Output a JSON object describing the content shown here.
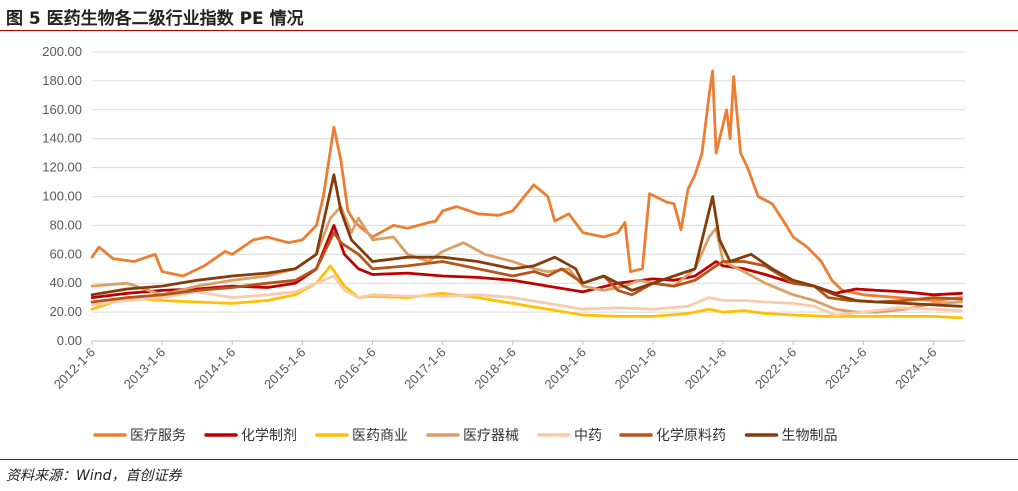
{
  "header": {
    "title": "图 5 医药生物各二级行业指数 PE 情况"
  },
  "footer": {
    "source": "资料来源：Wind，首创证券"
  },
  "chart_data": {
    "type": "line",
    "ylim": [
      0,
      200
    ],
    "yticks": [
      "0.00",
      "20.00",
      "40.00",
      "60.00",
      "80.00",
      "100.00",
      "120.00",
      "140.00",
      "160.00",
      "180.00",
      "200.00"
    ],
    "xticks": [
      "2012-1-6",
      "2013-1-6",
      "2014-1-6",
      "2015-1-6",
      "2016-1-6",
      "2017-1-6",
      "2018-1-6",
      "2019-1-6",
      "2020-1-6",
      "2021-1-6",
      "2022-1-6",
      "2023-1-6",
      "2024-1-6"
    ],
    "grid": true,
    "legend_position": "bottom",
    "series": [
      {
        "name": "医疗服务",
        "color": "#ED7D31",
        "values": [
          [
            2012.0,
            58
          ],
          [
            2012.1,
            65
          ],
          [
            2012.3,
            57
          ],
          [
            2012.6,
            55
          ],
          [
            2012.9,
            60
          ],
          [
            2013.0,
            48
          ],
          [
            2013.3,
            45
          ],
          [
            2013.6,
            52
          ],
          [
            2013.9,
            62
          ],
          [
            2014.0,
            60
          ],
          [
            2014.3,
            70
          ],
          [
            2014.5,
            72
          ],
          [
            2014.8,
            68
          ],
          [
            2015.0,
            70
          ],
          [
            2015.2,
            80
          ],
          [
            2015.3,
            100
          ],
          [
            2015.45,
            148
          ],
          [
            2015.55,
            125
          ],
          [
            2015.65,
            90
          ],
          [
            2015.75,
            82
          ],
          [
            2016.0,
            72
          ],
          [
            2016.3,
            80
          ],
          [
            2016.5,
            78
          ],
          [
            2016.8,
            82
          ],
          [
            2016.9,
            83
          ],
          [
            2017.0,
            90
          ],
          [
            2017.2,
            93
          ],
          [
            2017.5,
            88
          ],
          [
            2017.8,
            87
          ],
          [
            2018.0,
            90
          ],
          [
            2018.3,
            108
          ],
          [
            2018.5,
            100
          ],
          [
            2018.6,
            83
          ],
          [
            2018.8,
            88
          ],
          [
            2019.0,
            75
          ],
          [
            2019.3,
            72
          ],
          [
            2019.5,
            75
          ],
          [
            2019.6,
            82
          ],
          [
            2019.68,
            48
          ],
          [
            2019.85,
            50
          ],
          [
            2019.95,
            102
          ],
          [
            2020.2,
            96
          ],
          [
            2020.3,
            95
          ],
          [
            2020.4,
            77
          ],
          [
            2020.5,
            105
          ],
          [
            2020.6,
            115
          ],
          [
            2020.7,
            130
          ],
          [
            2020.8,
            170
          ],
          [
            2020.85,
            187
          ],
          [
            2020.9,
            130
          ],
          [
            2021.0,
            150
          ],
          [
            2021.05,
            160
          ],
          [
            2021.1,
            140
          ],
          [
            2021.15,
            183
          ],
          [
            2021.25,
            130
          ],
          [
            2021.35,
            120
          ],
          [
            2021.5,
            100
          ],
          [
            2021.7,
            95
          ],
          [
            2021.9,
            80
          ],
          [
            2022.0,
            72
          ],
          [
            2022.2,
            65
          ],
          [
            2022.4,
            55
          ],
          [
            2022.55,
            42
          ],
          [
            2022.7,
            35
          ],
          [
            2023.0,
            32
          ],
          [
            2023.5,
            30
          ],
          [
            2024.0,
            28
          ],
          [
            2024.4,
            30
          ]
        ]
      },
      {
        "name": "化学制剂",
        "color": "#C00000",
        "values": [
          [
            2012.0,
            30
          ],
          [
            2012.5,
            33
          ],
          [
            2013.0,
            35
          ],
          [
            2013.5,
            36
          ],
          [
            2014.0,
            38
          ],
          [
            2014.5,
            37
          ],
          [
            2014.9,
            40
          ],
          [
            2015.2,
            50
          ],
          [
            2015.45,
            80
          ],
          [
            2015.6,
            60
          ],
          [
            2015.8,
            50
          ],
          [
            2016.0,
            46
          ],
          [
            2016.5,
            47
          ],
          [
            2017.0,
            45
          ],
          [
            2017.5,
            44
          ],
          [
            2018.0,
            42
          ],
          [
            2018.5,
            38
          ],
          [
            2019.0,
            34
          ],
          [
            2019.5,
            40
          ],
          [
            2020.0,
            43
          ],
          [
            2020.3,
            42
          ],
          [
            2020.6,
            45
          ],
          [
            2020.9,
            55
          ],
          [
            2021.0,
            52
          ],
          [
            2021.3,
            50
          ],
          [
            2021.6,
            46
          ],
          [
            2022.0,
            40
          ],
          [
            2022.3,
            38
          ],
          [
            2022.6,
            33
          ],
          [
            2022.9,
            36
          ],
          [
            2023.2,
            35
          ],
          [
            2023.6,
            34
          ],
          [
            2024.0,
            32
          ],
          [
            2024.4,
            33
          ]
        ]
      },
      {
        "name": "医药商业",
        "color": "#FFC000",
        "values": [
          [
            2012.0,
            22
          ],
          [
            2012.5,
            30
          ],
          [
            2013.0,
            28
          ],
          [
            2013.5,
            27
          ],
          [
            2014.0,
            26
          ],
          [
            2014.5,
            28
          ],
          [
            2014.9,
            32
          ],
          [
            2015.2,
            40
          ],
          [
            2015.4,
            52
          ],
          [
            2015.6,
            38
          ],
          [
            2015.8,
            30
          ],
          [
            2016.0,
            31
          ],
          [
            2016.5,
            30
          ],
          [
            2017.0,
            33
          ],
          [
            2017.5,
            30
          ],
          [
            2018.0,
            26
          ],
          [
            2018.5,
            22
          ],
          [
            2019.0,
            18
          ],
          [
            2019.5,
            17
          ],
          [
            2020.0,
            17
          ],
          [
            2020.5,
            19
          ],
          [
            2020.8,
            22
          ],
          [
            2021.0,
            20
          ],
          [
            2021.3,
            21
          ],
          [
            2021.6,
            19
          ],
          [
            2022.0,
            18
          ],
          [
            2022.5,
            17
          ],
          [
            2023.0,
            17
          ],
          [
            2023.5,
            17
          ],
          [
            2024.0,
            17
          ],
          [
            2024.4,
            16
          ]
        ]
      },
      {
        "name": "医疗器械",
        "color": "#D9A066",
        "values": [
          [
            2012.0,
            38
          ],
          [
            2012.5,
            40
          ],
          [
            2013.0,
            32
          ],
          [
            2013.5,
            38
          ],
          [
            2014.0,
            42
          ],
          [
            2014.5,
            45
          ],
          [
            2014.9,
            50
          ],
          [
            2015.2,
            60
          ],
          [
            2015.4,
            85
          ],
          [
            2015.55,
            93
          ],
          [
            2015.7,
            75
          ],
          [
            2015.8,
            85
          ],
          [
            2016.0,
            70
          ],
          [
            2016.3,
            72
          ],
          [
            2016.5,
            60
          ],
          [
            2016.8,
            55
          ],
          [
            2017.0,
            62
          ],
          [
            2017.3,
            68
          ],
          [
            2017.6,
            60
          ],
          [
            2018.0,
            55
          ],
          [
            2018.3,
            50
          ],
          [
            2018.5,
            48
          ],
          [
            2018.8,
            50
          ],
          [
            2019.0,
            38
          ],
          [
            2019.3,
            35
          ],
          [
            2019.6,
            38
          ],
          [
            2019.8,
            42
          ],
          [
            2020.0,
            40
          ],
          [
            2020.3,
            38
          ],
          [
            2020.6,
            50
          ],
          [
            2020.8,
            72
          ],
          [
            2020.9,
            78
          ],
          [
            2021.0,
            55
          ],
          [
            2021.3,
            48
          ],
          [
            2021.6,
            40
          ],
          [
            2022.0,
            32
          ],
          [
            2022.3,
            28
          ],
          [
            2022.6,
            22
          ],
          [
            2022.9,
            20
          ],
          [
            2023.2,
            20
          ],
          [
            2023.6,
            22
          ],
          [
            2024.0,
            26
          ],
          [
            2024.4,
            27
          ]
        ]
      },
      {
        "name": "中药",
        "color": "#F8CBAD",
        "values": [
          [
            2012.0,
            25
          ],
          [
            2012.5,
            28
          ],
          [
            2013.0,
            30
          ],
          [
            2013.5,
            34
          ],
          [
            2014.0,
            30
          ],
          [
            2014.5,
            32
          ],
          [
            2014.9,
            34
          ],
          [
            2015.2,
            40
          ],
          [
            2015.45,
            45
          ],
          [
            2015.6,
            35
          ],
          [
            2015.8,
            30
          ],
          [
            2016.0,
            32
          ],
          [
            2016.5,
            31
          ],
          [
            2017.0,
            31
          ],
          [
            2017.5,
            32
          ],
          [
            2018.0,
            30
          ],
          [
            2018.5,
            26
          ],
          [
            2019.0,
            22
          ],
          [
            2019.5,
            23
          ],
          [
            2020.0,
            22
          ],
          [
            2020.5,
            24
          ],
          [
            2020.8,
            30
          ],
          [
            2021.0,
            28
          ],
          [
            2021.3,
            28
          ],
          [
            2021.6,
            27
          ],
          [
            2022.0,
            26
          ],
          [
            2022.3,
            24
          ],
          [
            2022.6,
            18
          ],
          [
            2023.0,
            20
          ],
          [
            2023.5,
            23
          ],
          [
            2024.0,
            22
          ],
          [
            2024.4,
            21
          ]
        ]
      },
      {
        "name": "化学原料药",
        "color": "#B5541B",
        "values": [
          [
            2012.0,
            27
          ],
          [
            2012.5,
            30
          ],
          [
            2013.0,
            32
          ],
          [
            2013.5,
            35
          ],
          [
            2014.0,
            37
          ],
          [
            2014.5,
            40
          ],
          [
            2014.9,
            42
          ],
          [
            2015.2,
            50
          ],
          [
            2015.45,
            75
          ],
          [
            2015.55,
            68
          ],
          [
            2015.8,
            60
          ],
          [
            2016.0,
            50
          ],
          [
            2016.5,
            52
          ],
          [
            2017.0,
            55
          ],
          [
            2017.5,
            50
          ],
          [
            2018.0,
            45
          ],
          [
            2018.3,
            48
          ],
          [
            2018.5,
            45
          ],
          [
            2018.7,
            50
          ],
          [
            2019.0,
            40
          ],
          [
            2019.3,
            45
          ],
          [
            2019.5,
            35
          ],
          [
            2019.7,
            32
          ],
          [
            2020.0,
            40
          ],
          [
            2020.3,
            38
          ],
          [
            2020.6,
            42
          ],
          [
            2020.9,
            52
          ],
          [
            2021.0,
            55
          ],
          [
            2021.3,
            55
          ],
          [
            2021.6,
            52
          ],
          [
            2022.0,
            40
          ],
          [
            2022.3,
            38
          ],
          [
            2022.5,
            30
          ],
          [
            2022.8,
            28
          ],
          [
            2023.2,
            27
          ],
          [
            2023.6,
            28
          ],
          [
            2024.0,
            30
          ],
          [
            2024.4,
            29
          ]
        ]
      },
      {
        "name": "生物制品",
        "color": "#843C0C",
        "values": [
          [
            2012.0,
            32
          ],
          [
            2012.5,
            36
          ],
          [
            2013.0,
            38
          ],
          [
            2013.5,
            42
          ],
          [
            2014.0,
            45
          ],
          [
            2014.5,
            47
          ],
          [
            2014.9,
            50
          ],
          [
            2015.2,
            60
          ],
          [
            2015.45,
            115
          ],
          [
            2015.55,
            90
          ],
          [
            2015.7,
            70
          ],
          [
            2015.9,
            60
          ],
          [
            2016.0,
            55
          ],
          [
            2016.5,
            58
          ],
          [
            2017.0,
            58
          ],
          [
            2017.5,
            55
          ],
          [
            2018.0,
            50
          ],
          [
            2018.3,
            52
          ],
          [
            2018.6,
            58
          ],
          [
            2018.9,
            50
          ],
          [
            2019.0,
            40
          ],
          [
            2019.3,
            45
          ],
          [
            2019.5,
            40
          ],
          [
            2019.7,
            35
          ],
          [
            2020.0,
            40
          ],
          [
            2020.3,
            45
          ],
          [
            2020.6,
            50
          ],
          [
            2020.85,
            100
          ],
          [
            2020.95,
            70
          ],
          [
            2021.1,
            55
          ],
          [
            2021.4,
            60
          ],
          [
            2021.7,
            50
          ],
          [
            2022.0,
            42
          ],
          [
            2022.3,
            38
          ],
          [
            2022.6,
            32
          ],
          [
            2022.9,
            28
          ],
          [
            2023.2,
            27
          ],
          [
            2023.6,
            26
          ],
          [
            2024.0,
            25
          ],
          [
            2024.4,
            24
          ]
        ]
      }
    ]
  }
}
